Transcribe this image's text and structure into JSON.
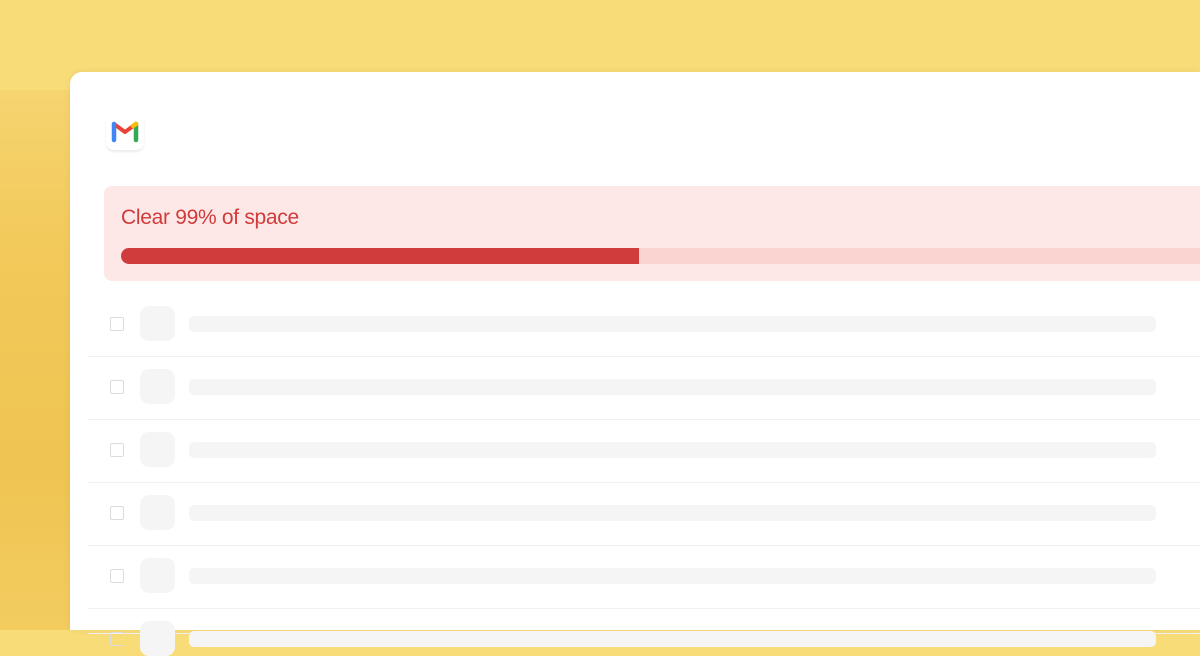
{
  "app": {
    "logo_icon": "gmail-logo-icon"
  },
  "banner": {
    "title": "Clear 99% of space",
    "progress_percent": 48,
    "accent_color": "#d03b3b"
  },
  "rows": [
    {},
    {},
    {},
    {},
    {},
    {}
  ]
}
